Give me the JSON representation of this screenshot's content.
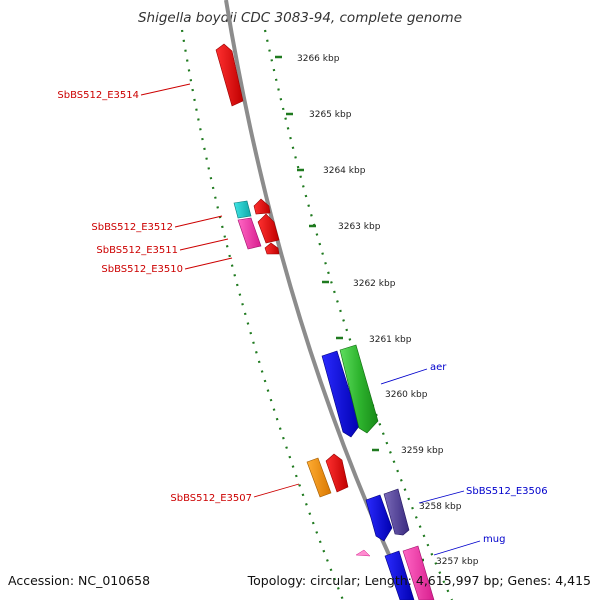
{
  "title": "Shigella boydii CDC 3083-94, complete genome",
  "footer": {
    "accession": "Accession: NC_010658",
    "topology": "Topology: circular; Length: 4,615,997 bp; Genes: 4,415"
  },
  "colors": {
    "backbone": "#8c8c8c",
    "ticks": "#1f7a1f",
    "label_reverse": "#cc0000",
    "label_forward": "#0000cc"
  },
  "scale_labels": [
    "3266 kbp",
    "3265 kbp",
    "3264 kbp",
    "3263 kbp",
    "3262 kbp",
    "3261 kbp",
    "3260 kbp",
    "3259 kbp",
    "3258 kbp",
    "3257 kbp"
  ],
  "gene_labels": [
    {
      "text": "SbBS512_E3514",
      "strand": "reverse"
    },
    {
      "text": "SbBS512_E3512",
      "strand": "reverse"
    },
    {
      "text": "SbBS512_E3511",
      "strand": "reverse"
    },
    {
      "text": "SbBS512_E3510",
      "strand": "reverse"
    },
    {
      "text": "SbBS512_E3507",
      "strand": "reverse"
    },
    {
      "text": "aer",
      "strand": "forward"
    },
    {
      "text": "SbBS512_E3506",
      "strand": "forward"
    },
    {
      "text": "mug",
      "strand": "forward"
    }
  ]
}
